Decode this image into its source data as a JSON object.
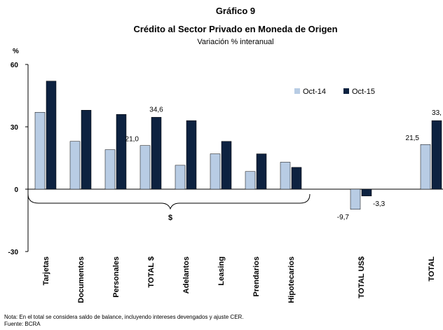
{
  "chart_data": {
    "type": "bar",
    "title": "Gráfico 9",
    "subtitle": "Crédito al Sector Privado en Moneda de Origen",
    "subtitle2": "Variación % interanual",
    "y_label": "%",
    "categories": [
      "Tarjetas",
      "Documentos",
      "Personales",
      "TOTAL $",
      "Adelantos",
      "Leasing",
      "Prendarios",
      "Hipotecarios",
      null,
      "TOTAL US$",
      null,
      "TOTAL"
    ],
    "series": [
      {
        "name": "Oct-14",
        "color": "#b8cce4",
        "values": [
          37,
          23,
          19,
          21.0,
          11.5,
          17,
          8.5,
          13,
          null,
          -9.7,
          null,
          21.5
        ],
        "value_labels": [
          null,
          null,
          null,
          "21,0",
          null,
          null,
          null,
          null,
          null,
          "-9,7",
          null,
          "21,5"
        ]
      },
      {
        "name": "Oct-15",
        "color": "#0d2240",
        "values": [
          52,
          38,
          36,
          34.6,
          33,
          23,
          17,
          10.5,
          null,
          -3.3,
          null,
          33
        ],
        "value_labels": [
          null,
          null,
          null,
          "34,6",
          null,
          null,
          null,
          null,
          null,
          "-3,3",
          null,
          "33,"
        ]
      }
    ],
    "ylim": [
      -30,
      60
    ],
    "yticks": [
      60,
      30,
      0,
      -30
    ],
    "annotation": "$",
    "note": "Nota: En el total se considera saldo de balance, incluyendo intereses devengados y ajuste CER.",
    "source": "Fuente: BCRA"
  }
}
